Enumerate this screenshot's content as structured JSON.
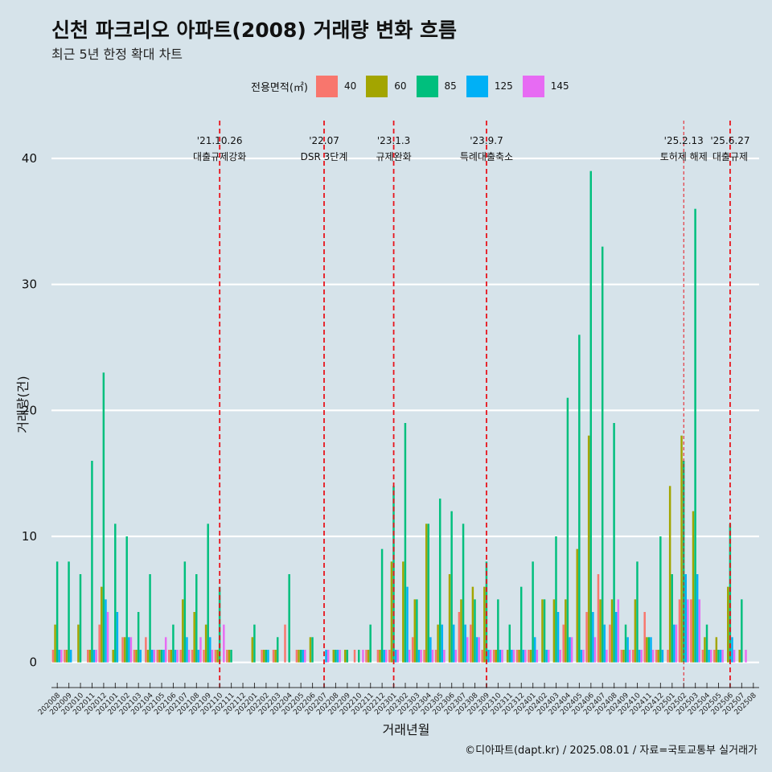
{
  "title": "신천 파크리오 아파트(2008) 거래량 변화 흐름",
  "subtitle": "최근 5년 한정 확대 차트",
  "caption": "©디아파트(dapt.kr) / 2025.08.01 / 자료=국토교통부 실거래가",
  "legend": {
    "title": "전용면적(㎡)",
    "items": [
      {
        "label": "40",
        "color": "#f8766d"
      },
      {
        "label": "60",
        "color": "#a3a500"
      },
      {
        "label": "85",
        "color": "#00bf7d"
      },
      {
        "label": "125",
        "color": "#00b0f6"
      },
      {
        "label": "145",
        "color": "#e76bf3"
      }
    ]
  },
  "chart_data": {
    "type": "bar",
    "xlabel": "거래년월",
    "ylabel": "거래량(건)",
    "ylim": [
      -2,
      43
    ],
    "yticks": [
      0,
      10,
      20,
      30,
      40
    ],
    "grid": true,
    "legend_position": "top",
    "categories": [
      "202008",
      "202009",
      "202010",
      "202011",
      "202012",
      "202101",
      "202102",
      "202103",
      "202104",
      "202105",
      "202106",
      "202107",
      "202108",
      "202109",
      "202110",
      "202111",
      "202112",
      "202201",
      "202202",
      "202203",
      "202204",
      "202205",
      "202206",
      "202207",
      "202208",
      "202209",
      "202210",
      "202211",
      "202212",
      "202301",
      "202302",
      "202303",
      "202304",
      "202305",
      "202306",
      "202307",
      "202308",
      "202309",
      "202310",
      "202311",
      "202312",
      "202401",
      "202402",
      "202403",
      "202404",
      "202405",
      "202406",
      "202407",
      "202408",
      "202409",
      "202410",
      "202411",
      "202412",
      "202501",
      "202502",
      "202503",
      "202504",
      "202505",
      "202506",
      "202507",
      "202508"
    ],
    "series": [
      {
        "name": "40",
        "color": "#f8766d",
        "values": [
          1,
          1,
          0,
          1,
          3,
          0,
          2,
          1,
          2,
          1,
          1,
          1,
          1,
          1,
          1,
          1,
          0,
          0,
          1,
          1,
          3,
          1,
          0,
          0,
          0,
          0,
          1,
          1,
          1,
          1,
          0,
          2,
          1,
          1,
          0,
          4,
          3,
          1,
          1,
          0,
          1,
          1,
          0,
          0,
          3,
          0,
          4,
          7,
          3,
          1,
          1,
          4,
          1,
          1,
          5,
          5,
          1,
          1,
          0,
          0,
          0
        ]
      },
      {
        "name": "60",
        "color": "#a3a500",
        "values": [
          3,
          1,
          3,
          1,
          6,
          1,
          2,
          1,
          1,
          1,
          1,
          5,
          4,
          3,
          1,
          1,
          0,
          2,
          1,
          1,
          0,
          1,
          2,
          0,
          1,
          1,
          0,
          1,
          1,
          8,
          8,
          5,
          11,
          3,
          7,
          5,
          6,
          6,
          1,
          1,
          1,
          1,
          5,
          5,
          5,
          9,
          18,
          5,
          5,
          1,
          5,
          2,
          1,
          14,
          18,
          12,
          2,
          2,
          6,
          1,
          0
        ]
      },
      {
        "name": "85",
        "color": "#00bf7d",
        "values": [
          8,
          8,
          7,
          16,
          23,
          11,
          10,
          4,
          7,
          1,
          3,
          8,
          7,
          11,
          6,
          1,
          0,
          3,
          1,
          2,
          7,
          1,
          2,
          0,
          1,
          1,
          1,
          3,
          9,
          14,
          19,
          5,
          11,
          13,
          12,
          11,
          5,
          8,
          5,
          3,
          6,
          8,
          5,
          10,
          21,
          26,
          39,
          33,
          19,
          3,
          8,
          2,
          10,
          7,
          16,
          36,
          3,
          1,
          11,
          5,
          0
        ]
      },
      {
        "name": "125",
        "color": "#00b0f6",
        "values": [
          1,
          1,
          0,
          1,
          5,
          4,
          2,
          1,
          1,
          1,
          1,
          2,
          1,
          2,
          0,
          0,
          0,
          0,
          1,
          0,
          0,
          1,
          0,
          1,
          1,
          0,
          0,
          0,
          1,
          1,
          6,
          1,
          2,
          3,
          3,
          3,
          2,
          1,
          1,
          1,
          1,
          2,
          1,
          4,
          2,
          1,
          4,
          3,
          4,
          2,
          1,
          2,
          1,
          3,
          7,
          7,
          1,
          1,
          2,
          0,
          0
        ]
      },
      {
        "name": "145",
        "color": "#e76bf3",
        "values": [
          1,
          0,
          0,
          1,
          4,
          0,
          2,
          0,
          1,
          2,
          1,
          1,
          2,
          1,
          3,
          0,
          0,
          0,
          0,
          0,
          0,
          1,
          0,
          1,
          1,
          0,
          1,
          0,
          1,
          1,
          1,
          1,
          1,
          1,
          1,
          2,
          2,
          1,
          1,
          1,
          1,
          1,
          1,
          1,
          2,
          1,
          2,
          1,
          5,
          1,
          1,
          1,
          0,
          3,
          5,
          5,
          1,
          1,
          1,
          1,
          0
        ]
      }
    ],
    "events": [
      {
        "date_label": "'21.10.26",
        "text": "대출규제강화",
        "at": "202110",
        "style": "bold"
      },
      {
        "date_label": "'22.07",
        "text": "DSR 3단계",
        "at": "202207",
        "style": "bold"
      },
      {
        "date_label": "'23.1.3",
        "text": "규제완화",
        "at": "202301",
        "style": "bold"
      },
      {
        "date_label": "'23.9.7",
        "text": "특례대출축소",
        "at": "202309",
        "style": "bold"
      },
      {
        "date_label": "'25.2.13",
        "text": "토허제 해제",
        "at": "202502",
        "style": "thin"
      },
      {
        "date_label": "'25.6.27",
        "text": "대출규제",
        "at": "202506",
        "style": "bold"
      }
    ]
  }
}
